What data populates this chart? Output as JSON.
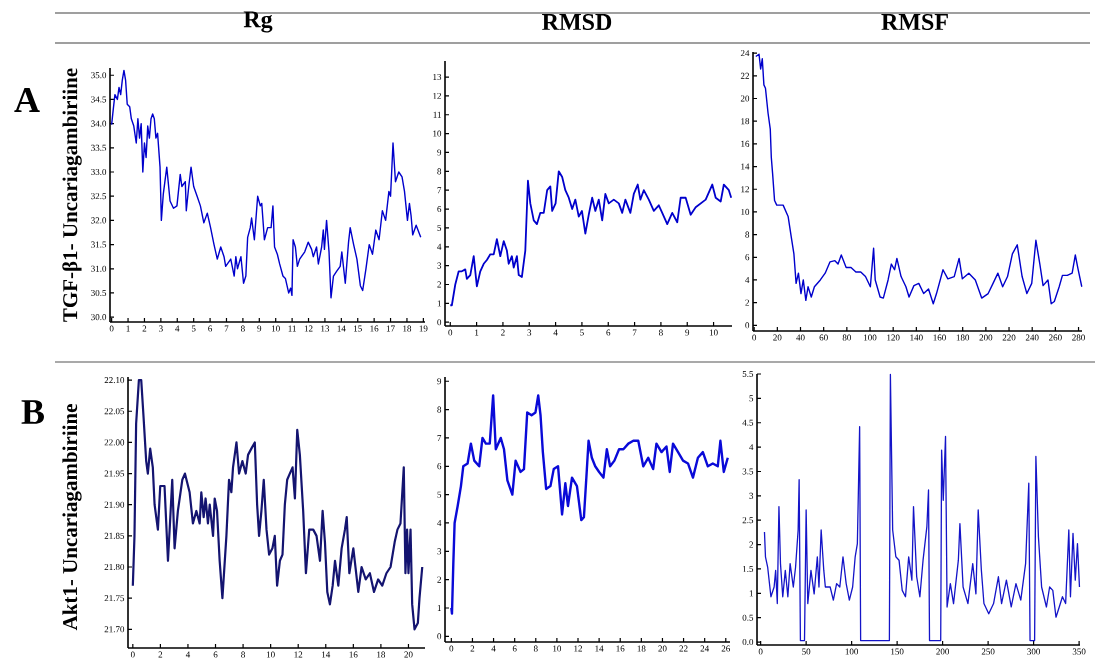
{
  "chart_data": [
    {
      "type": "line",
      "title": "Rg",
      "ylabel": "TGF-β1- Uncariagambiriine",
      "annotations": [
        "A"
      ],
      "color": "#0000cc",
      "xlim": [
        -0.1,
        19.1
      ],
      "ylim": [
        29.9,
        35.15
      ],
      "xticks": [
        0,
        1,
        2,
        3,
        4,
        5,
        6,
        7,
        8,
        9,
        10,
        11,
        12,
        13,
        14,
        15,
        16,
        17,
        18,
        19
      ],
      "yticks": [
        {
          "value": 30,
          "label": "30.0"
        },
        30.5,
        {
          "value": 31,
          "label": "31.0"
        },
        31.5,
        {
          "value": 32,
          "label": "32.0"
        },
        32.5,
        {
          "value": 33,
          "label": "33.0"
        },
        33.5,
        {
          "value": 34,
          "label": "34.0"
        },
        34.5,
        {
          "value": 35,
          "label": "35.0"
        }
      ],
      "x": [
        0,
        0.1,
        0.2,
        0.35,
        0.45,
        0.55,
        0.65,
        0.75,
        0.85,
        0.95,
        1.1,
        1.2,
        1.35,
        1.5,
        1.6,
        1.7,
        1.8,
        1.9,
        2.0,
        2.1,
        2.2,
        2.3,
        2.4,
        2.5,
        2.6,
        2.7,
        2.8,
        2.95,
        3.03,
        3.15,
        3.36,
        3.56,
        3.77,
        3.98,
        4.18,
        4.28,
        4.49,
        4.55,
        4.7,
        4.84,
        5.0,
        5.21,
        5.41,
        5.62,
        5.83,
        6.03,
        6.24,
        6.34,
        6.44,
        6.65,
        6.85,
        6.95,
        7.26,
        7.47,
        7.57,
        7.67,
        7.88,
        8.04,
        8.18,
        8.29,
        8.45,
        8.53,
        8.7,
        8.9,
        9.06,
        9.15,
        9.31,
        9.51,
        9.72,
        9.83,
        9.93,
        10.1,
        10.24,
        10.44,
        10.59,
        10.79,
        10.91,
        10.99,
        11.06,
        11.2,
        11.32,
        11.46,
        11.77,
        11.98,
        12.19,
        12.29,
        12.49,
        12.6,
        12.8,
        12.9,
        12.97,
        13.1,
        13.25,
        13.37,
        13.52,
        13.72,
        13.93,
        14.03,
        14.24,
        14.44,
        14.54,
        14.75,
        14.95,
        15.16,
        15.3,
        15.5,
        15.7,
        15.9,
        16.1,
        16.3,
        16.5,
        16.7,
        16.9,
        17.0,
        17.15,
        17.3,
        17.5,
        17.7,
        17.85,
        18.03,
        18.15,
        18.25,
        18.35,
        18.56,
        18.84
      ],
      "values": [
        33.98,
        34.3,
        34.6,
        34.5,
        34.75,
        34.6,
        34.9,
        35.1,
        34.9,
        34.4,
        34.35,
        34.1,
        33.95,
        33.6,
        34.1,
        33.7,
        34.0,
        33.0,
        33.6,
        33.3,
        33.95,
        33.7,
        34.1,
        34.2,
        34.1,
        33.7,
        33.8,
        33.1,
        32.0,
        32.55,
        33.1,
        32.4,
        32.25,
        32.3,
        32.95,
        32.7,
        32.8,
        32.2,
        32.7,
        33.1,
        32.7,
        32.5,
        32.3,
        31.95,
        32.15,
        31.85,
        31.5,
        31.35,
        31.2,
        31.45,
        31.25,
        31.05,
        31.2,
        30.85,
        31.25,
        31.0,
        31.25,
        30.7,
        30.85,
        31.65,
        31.85,
        32.05,
        31.6,
        32.5,
        32.3,
        32.35,
        31.6,
        31.85,
        31.85,
        32.3,
        31.45,
        31.3,
        31.1,
        30.85,
        30.8,
        30.5,
        30.6,
        30.45,
        31.6,
        31.45,
        31.05,
        31.2,
        31.35,
        31.55,
        31.4,
        31.25,
        31.45,
        31.1,
        31.45,
        31.8,
        31.4,
        32.0,
        31.35,
        30.4,
        30.85,
        30.95,
        31.05,
        31.35,
        30.7,
        31.55,
        31.85,
        31.5,
        31.2,
        30.65,
        30.55,
        31.0,
        31.5,
        31.3,
        31.8,
        31.6,
        32.2,
        32.0,
        32.6,
        32.5,
        33.6,
        32.8,
        33.0,
        32.9,
        32.6,
        32.0,
        32.35,
        32.1,
        31.7,
        31.9,
        31.65
      ]
    },
    {
      "type": "line",
      "title": "RMSD",
      "color": "#0000cc",
      "xlim": [
        -0.2,
        10.7
      ],
      "ylim": [
        -0.2,
        13.85
      ],
      "xticks": [
        0,
        1,
        2,
        3,
        4,
        5,
        6,
        7,
        8,
        9,
        10
      ],
      "yticks": [
        0,
        1,
        2,
        3,
        4,
        5,
        6,
        7,
        8,
        9,
        10,
        11,
        12,
        13
      ],
      "x": [
        0,
        0.06,
        0.19,
        0.32,
        0.44,
        0.57,
        0.63,
        0.76,
        0.89,
        1.01,
        1.14,
        1.27,
        1.39,
        1.52,
        1.65,
        1.77,
        1.9,
        2.03,
        2.15,
        2.22,
        2.34,
        2.41,
        2.53,
        2.6,
        2.72,
        2.85,
        2.95,
        3.04,
        3.17,
        3.29,
        3.42,
        3.55,
        3.68,
        3.8,
        3.87,
        4.0,
        4.12,
        4.25,
        4.37,
        4.5,
        4.63,
        4.75,
        4.88,
        5.0,
        5.13,
        5.26,
        5.39,
        5.51,
        5.64,
        5.77,
        5.89,
        6.02,
        6.21,
        6.4,
        6.53,
        6.65,
        6.84,
        6.97,
        7.12,
        7.22,
        7.35,
        7.54,
        7.73,
        7.92,
        8.05,
        8.24,
        8.43,
        8.62,
        8.75,
        8.94,
        9.13,
        9.32,
        9.51,
        9.7,
        9.95,
        10.08,
        10.27,
        10.39,
        10.58,
        10.67
      ],
      "values": [
        0.9,
        0.9,
        2.0,
        2.7,
        2.7,
        2.8,
        2.3,
        2.5,
        3.5,
        1.9,
        2.7,
        3.1,
        3.3,
        3.6,
        3.6,
        4.4,
        3.5,
        4.3,
        3.8,
        3.1,
        3.5,
        2.9,
        3.5,
        2.5,
        2.4,
        3.8,
        7.5,
        6.3,
        5.4,
        5.2,
        5.8,
        5.8,
        7.0,
        7.2,
        5.9,
        6.3,
        8.0,
        7.7,
        7.0,
        6.6,
        6.0,
        6.5,
        5.6,
        5.9,
        4.7,
        5.7,
        6.6,
        5.9,
        6.5,
        5.4,
        6.8,
        6.3,
        6.5,
        6.3,
        5.8,
        6.5,
        5.8,
        6.8,
        7.3,
        6.5,
        7.0,
        6.5,
        5.9,
        6.2,
        5.8,
        5.2,
        5.8,
        5.3,
        6.6,
        6.6,
        5.7,
        6.1,
        6.3,
        6.5,
        7.3,
        6.6,
        6.4,
        7.3,
        7.0,
        6.6
      ]
    },
    {
      "type": "line",
      "title": "RMSF",
      "color": "#0000cc",
      "xlim": [
        -1,
        283
      ],
      "ylim": [
        -0.5,
        24.1
      ],
      "xticks": [
        0,
        20,
        40,
        60,
        80,
        100,
        120,
        140,
        160,
        180,
        200,
        220,
        240,
        260,
        280
      ],
      "yticks": [
        0,
        2,
        4,
        6,
        8,
        10,
        12,
        14,
        16,
        18,
        20,
        22,
        24
      ],
      "x": [
        1.4,
        4.2,
        5.6,
        7.0,
        8.4,
        9.75,
        12,
        13.9,
        14.8,
        15.9,
        17.6,
        19.5,
        25,
        29.3,
        32,
        34.3,
        36.2,
        38.2,
        40.4,
        42.4,
        44.6,
        46.5,
        49.3,
        52,
        57.1,
        61.3,
        65.5,
        69.7,
        72.4,
        75.2,
        79.4,
        83.6,
        87.8,
        92,
        96.1,
        100.3,
        103.1,
        104.5,
        108.7,
        111.5,
        115.6,
        118.4,
        121.2,
        123.2,
        126.8,
        131,
        133.7,
        137.9,
        142.1,
        146.3,
        150.5,
        154.6,
        157.4,
        163,
        167.2,
        172.7,
        176.9,
        179.7,
        185.3,
        190.9,
        196.4,
        202,
        206.2,
        210.4,
        214.5,
        218.7,
        222.9,
        227.1,
        231.3,
        235.4,
        239.6,
        243.2,
        246.6,
        249.4,
        253.6,
        256.4,
        259.1,
        263.3,
        266.1,
        270.3,
        274.5,
        277.2,
        279.5,
        282.8
      ],
      "values": [
        23.7,
        23.9,
        22.6,
        23.5,
        21.2,
        20.9,
        18.7,
        17.3,
        14.8,
        13.4,
        11.0,
        10.6,
        10.6,
        9.6,
        7.8,
        6.3,
        3.7,
        4.6,
        2.8,
        4.0,
        2.2,
        3.4,
        2.5,
        3.4,
        4.0,
        4.6,
        5.6,
        5.7,
        5.4,
        6.2,
        5.1,
        5.1,
        4.7,
        4.7,
        4.3,
        3.4,
        6.8,
        4.0,
        2.5,
        2.4,
        4.0,
        5.4,
        4.9,
        5.9,
        4.3,
        3.4,
        2.5,
        3.5,
        3.7,
        2.8,
        3.2,
        1.9,
        2.8,
        4.9,
        4.1,
        4.3,
        5.9,
        4.1,
        4.6,
        4.0,
        2.4,
        2.8,
        3.7,
        4.6,
        3.4,
        4.3,
        6.3,
        7.1,
        4.3,
        2.8,
        3.7,
        7.5,
        5.4,
        3.5,
        4.0,
        1.9,
        2.1,
        3.4,
        4.4,
        4.4,
        4.6,
        6.2,
        5.0,
        3.4
      ]
    },
    {
      "type": "line",
      "ylabel": "Akt1- Uncariagambiriine",
      "annotations": [
        "B"
      ],
      "color": "#141470",
      "xlim": [
        -0.35,
        21.2
      ],
      "ylim": [
        21.67,
        22.105
      ],
      "xticks": [
        0,
        2,
        4,
        6,
        8,
        10,
        12,
        14,
        16,
        18,
        20
      ],
      "yticks": [
        {
          "value": 21.7,
          "label": "21.70"
        },
        21.75,
        {
          "value": 21.8,
          "label": "21.80"
        },
        21.85,
        {
          "value": 21.9,
          "label": "21.90"
        },
        21.95,
        {
          "value": 22.0,
          "label": "22.00"
        },
        22.05,
        {
          "value": 22.1,
          "label": "22.10"
        }
      ],
      "x": [
        0,
        0.12,
        0.24,
        0.44,
        0.61,
        0.78,
        0.97,
        1.09,
        1.26,
        1.45,
        1.58,
        1.82,
        1.99,
        2.3,
        2.55,
        2.72,
        2.86,
        3.03,
        3.27,
        3.59,
        3.78,
        4.12,
        4.36,
        4.61,
        4.85,
        4.97,
        5.14,
        5.28,
        5.45,
        5.58,
        5.82,
        5.94,
        6.11,
        6.3,
        6.5,
        6.79,
        6.98,
        7.15,
        7.27,
        7.52,
        7.71,
        7.95,
        8.19,
        8.36,
        8.6,
        8.85,
        9.02,
        9.16,
        9.33,
        9.5,
        9.7,
        9.89,
        10.13,
        10.3,
        10.47,
        10.67,
        10.86,
        11.03,
        11.2,
        11.39,
        11.59,
        11.76,
        11.93,
        12.12,
        12.36,
        12.56,
        12.8,
        13.09,
        13.33,
        13.58,
        13.77,
        13.94,
        14.11,
        14.3,
        14.5,
        14.67,
        14.91,
        15.15,
        15.39,
        15.52,
        15.71,
        16.0,
        16.36,
        16.6,
        16.9,
        17.2,
        17.5,
        17.8,
        18.1,
        18.4,
        18.7,
        19.0,
        19.2,
        19.42,
        19.66,
        19.78,
        19.9,
        20.0,
        20.15,
        20.27,
        20.44,
        20.68,
        20.8,
        21.0
      ],
      "values": [
        21.77,
        21.85,
        22.03,
        22.1,
        22.1,
        22.04,
        21.97,
        21.95,
        21.99,
        21.96,
        21.9,
        21.86,
        21.93,
        21.93,
        21.81,
        21.88,
        21.94,
        21.83,
        21.89,
        21.94,
        21.95,
        21.92,
        21.87,
        21.89,
        21.87,
        21.92,
        21.88,
        21.91,
        21.87,
        21.9,
        21.85,
        21.91,
        21.89,
        21.81,
        21.75,
        21.85,
        21.94,
        21.92,
        21.96,
        22.0,
        21.95,
        21.97,
        21.95,
        21.98,
        21.99,
        22.0,
        21.9,
        21.85,
        21.89,
        21.94,
        21.86,
        21.82,
        21.83,
        21.85,
        21.77,
        21.81,
        21.82,
        21.9,
        21.94,
        21.95,
        21.96,
        21.91,
        22.02,
        21.98,
        21.89,
        21.79,
        21.86,
        21.86,
        21.85,
        21.81,
        21.89,
        21.84,
        21.76,
        21.74,
        21.77,
        21.81,
        21.77,
        21.83,
        21.86,
        21.88,
        21.79,
        21.83,
        21.76,
        21.8,
        21.78,
        21.79,
        21.76,
        21.78,
        21.77,
        21.79,
        21.8,
        21.84,
        21.86,
        21.87,
        21.96,
        21.79,
        21.86,
        21.79,
        21.86,
        21.74,
        21.7,
        21.71,
        21.75,
        21.8
      ]
    },
    {
      "type": "line",
      "color": "#0a0ad8",
      "xlim": [
        -0.6,
        26.4
      ],
      "ylim": [
        -0.2,
        9.15
      ],
      "xticks": [
        0,
        2,
        4,
        6,
        8,
        10,
        12,
        14,
        16,
        18,
        20,
        22,
        24,
        26
      ],
      "yticks": [
        0,
        1,
        2,
        3,
        4,
        5,
        6,
        7,
        8,
        9
      ],
      "x": [
        0,
        0.06,
        0.19,
        0.31,
        0.6,
        0.91,
        1.13,
        1.54,
        1.85,
        2.17,
        2.64,
        2.95,
        3.27,
        3.64,
        3.96,
        4.21,
        4.68,
        4.99,
        5.31,
        5.78,
        6.09,
        6.56,
        6.88,
        7.19,
        7.6,
        7.97,
        8.23,
        8.45,
        8.67,
        8.98,
        9.39,
        9.7,
        10.11,
        10.49,
        10.8,
        11.05,
        11.43,
        11.9,
        12.31,
        12.56,
        12.84,
        13.0,
        13.31,
        13.63,
        14.0,
        14.41,
        14.73,
        15.04,
        15.45,
        15.89,
        16.3,
        16.77,
        17.24,
        17.71,
        18.18,
        18.65,
        19.12,
        19.43,
        19.91,
        20.38,
        20.69,
        21.0,
        21.48,
        21.95,
        22.42,
        22.89,
        23.36,
        23.83,
        24.3,
        24.77,
        25.24,
        25.49,
        25.81,
        26.19
      ],
      "values": [
        1.0,
        0.8,
        2.6,
        4.0,
        4.6,
        5.3,
        6.0,
        6.1,
        6.8,
        6.2,
        6.0,
        7.0,
        6.8,
        6.8,
        8.5,
        6.6,
        7.0,
        6.6,
        5.5,
        5.0,
        6.2,
        5.8,
        5.9,
        7.9,
        7.8,
        7.9,
        8.5,
        7.8,
        6.5,
        5.2,
        5.3,
        5.9,
        6.0,
        4.3,
        5.4,
        4.6,
        5.6,
        5.3,
        4.1,
        4.2,
        5.9,
        6.9,
        6.3,
        6.0,
        5.8,
        5.6,
        6.6,
        6.0,
        6.2,
        6.6,
        6.6,
        6.8,
        6.9,
        6.9,
        6.0,
        6.3,
        5.9,
        6.8,
        6.5,
        6.7,
        5.8,
        6.8,
        6.5,
        6.2,
        6.1,
        5.6,
        6.3,
        6.5,
        6.0,
        6.1,
        6.0,
        6.9,
        5.8,
        6.3
      ]
    },
    {
      "type": "line",
      "color": "#1414c8",
      "xlim": [
        -4,
        351
      ],
      "ylim": [
        -0.06,
        5.5
      ],
      "xticks": [
        0,
        50,
        100,
        150,
        200,
        250,
        300,
        350
      ],
      "yticks": [
        {
          "value": 0,
          "label": "0.0"
        },
        0.5,
        1,
        1.5,
        2,
        2.5,
        3,
        3.5,
        4,
        4.5,
        5,
        5.5
      ],
      "x": [
        4.2,
        5.3,
        7.7,
        11.3,
        14.8,
        16.5,
        18.3,
        20.1,
        21.8,
        24.3,
        27.1,
        29.9,
        32.4,
        35.9,
        38.4,
        41.2,
        42.3,
        43.7,
        48.2,
        50,
        51.8,
        55.3,
        58.8,
        62.3,
        64.1,
        66.5,
        69.4,
        71.1,
        76.4,
        79.9,
        83.5,
        87,
        90.5,
        94,
        97.5,
        101.1,
        103.9,
        106.3,
        108.8,
        109.9,
        141.5,
        142.6,
        145.1,
        148.6,
        152.1,
        155.6,
        159.2,
        162.7,
        166.2,
        168,
        171.5,
        175,
        178.5,
        182.7,
        184.5,
        185.6,
        197.9,
        198.9,
        200.7,
        203.2,
        204.9,
        208.5,
        212,
        217.3,
        219,
        222.5,
        227.8,
        233.1,
        236.6,
        239.1,
        242.6,
        245.4,
        250.7,
        256,
        261.3,
        264.8,
        270.1,
        275.4,
        280.6,
        285.9,
        291.2,
        294.7,
        296.1,
        301.1,
        302.5,
        305.3,
        308.8,
        314.1,
        317.6,
        321.1,
        324.6,
        328.2,
        331.7,
        335.2,
        338.7,
        340.5,
        343.3,
        345.8,
        348.2,
        350.4
      ],
      "values": [
        2.26,
        1.75,
        1.54,
        0.93,
        1.13,
        1.47,
        0.79,
        2.78,
        1.61,
        0.93,
        1.47,
        0.93,
        1.61,
        1.13,
        1.54,
        2.3,
        3.33,
        0.03,
        0.03,
        2.71,
        0.79,
        1.47,
        0.99,
        1.75,
        1.13,
        2.3,
        1.47,
        1.13,
        1.13,
        0.86,
        1.2,
        1.13,
        1.75,
        1.2,
        0.86,
        1.13,
        1.75,
        2.02,
        4.42,
        0.03,
        0.03,
        5.49,
        2.3,
        1.75,
        1.68,
        1.06,
        0.93,
        1.75,
        1.27,
        2.78,
        1.34,
        0.93,
        1.68,
        2.37,
        3.12,
        0.03,
        0.03,
        3.94,
        2.91,
        4.22,
        0.72,
        1.2,
        0.79,
        1.68,
        2.43,
        1.13,
        0.79,
        1.61,
        0.99,
        2.71,
        1.47,
        0.79,
        0.58,
        0.79,
        1.34,
        0.79,
        1.27,
        0.72,
        1.2,
        0.86,
        1.61,
        3.26,
        0.03,
        0.03,
        3.81,
        2.16,
        1.13,
        0.72,
        1.13,
        1.06,
        0.51,
        0.72,
        0.93,
        0.79,
        2.3,
        0.93,
        2.23,
        1.27,
        2.02,
        1.13
      ]
    }
  ]
}
